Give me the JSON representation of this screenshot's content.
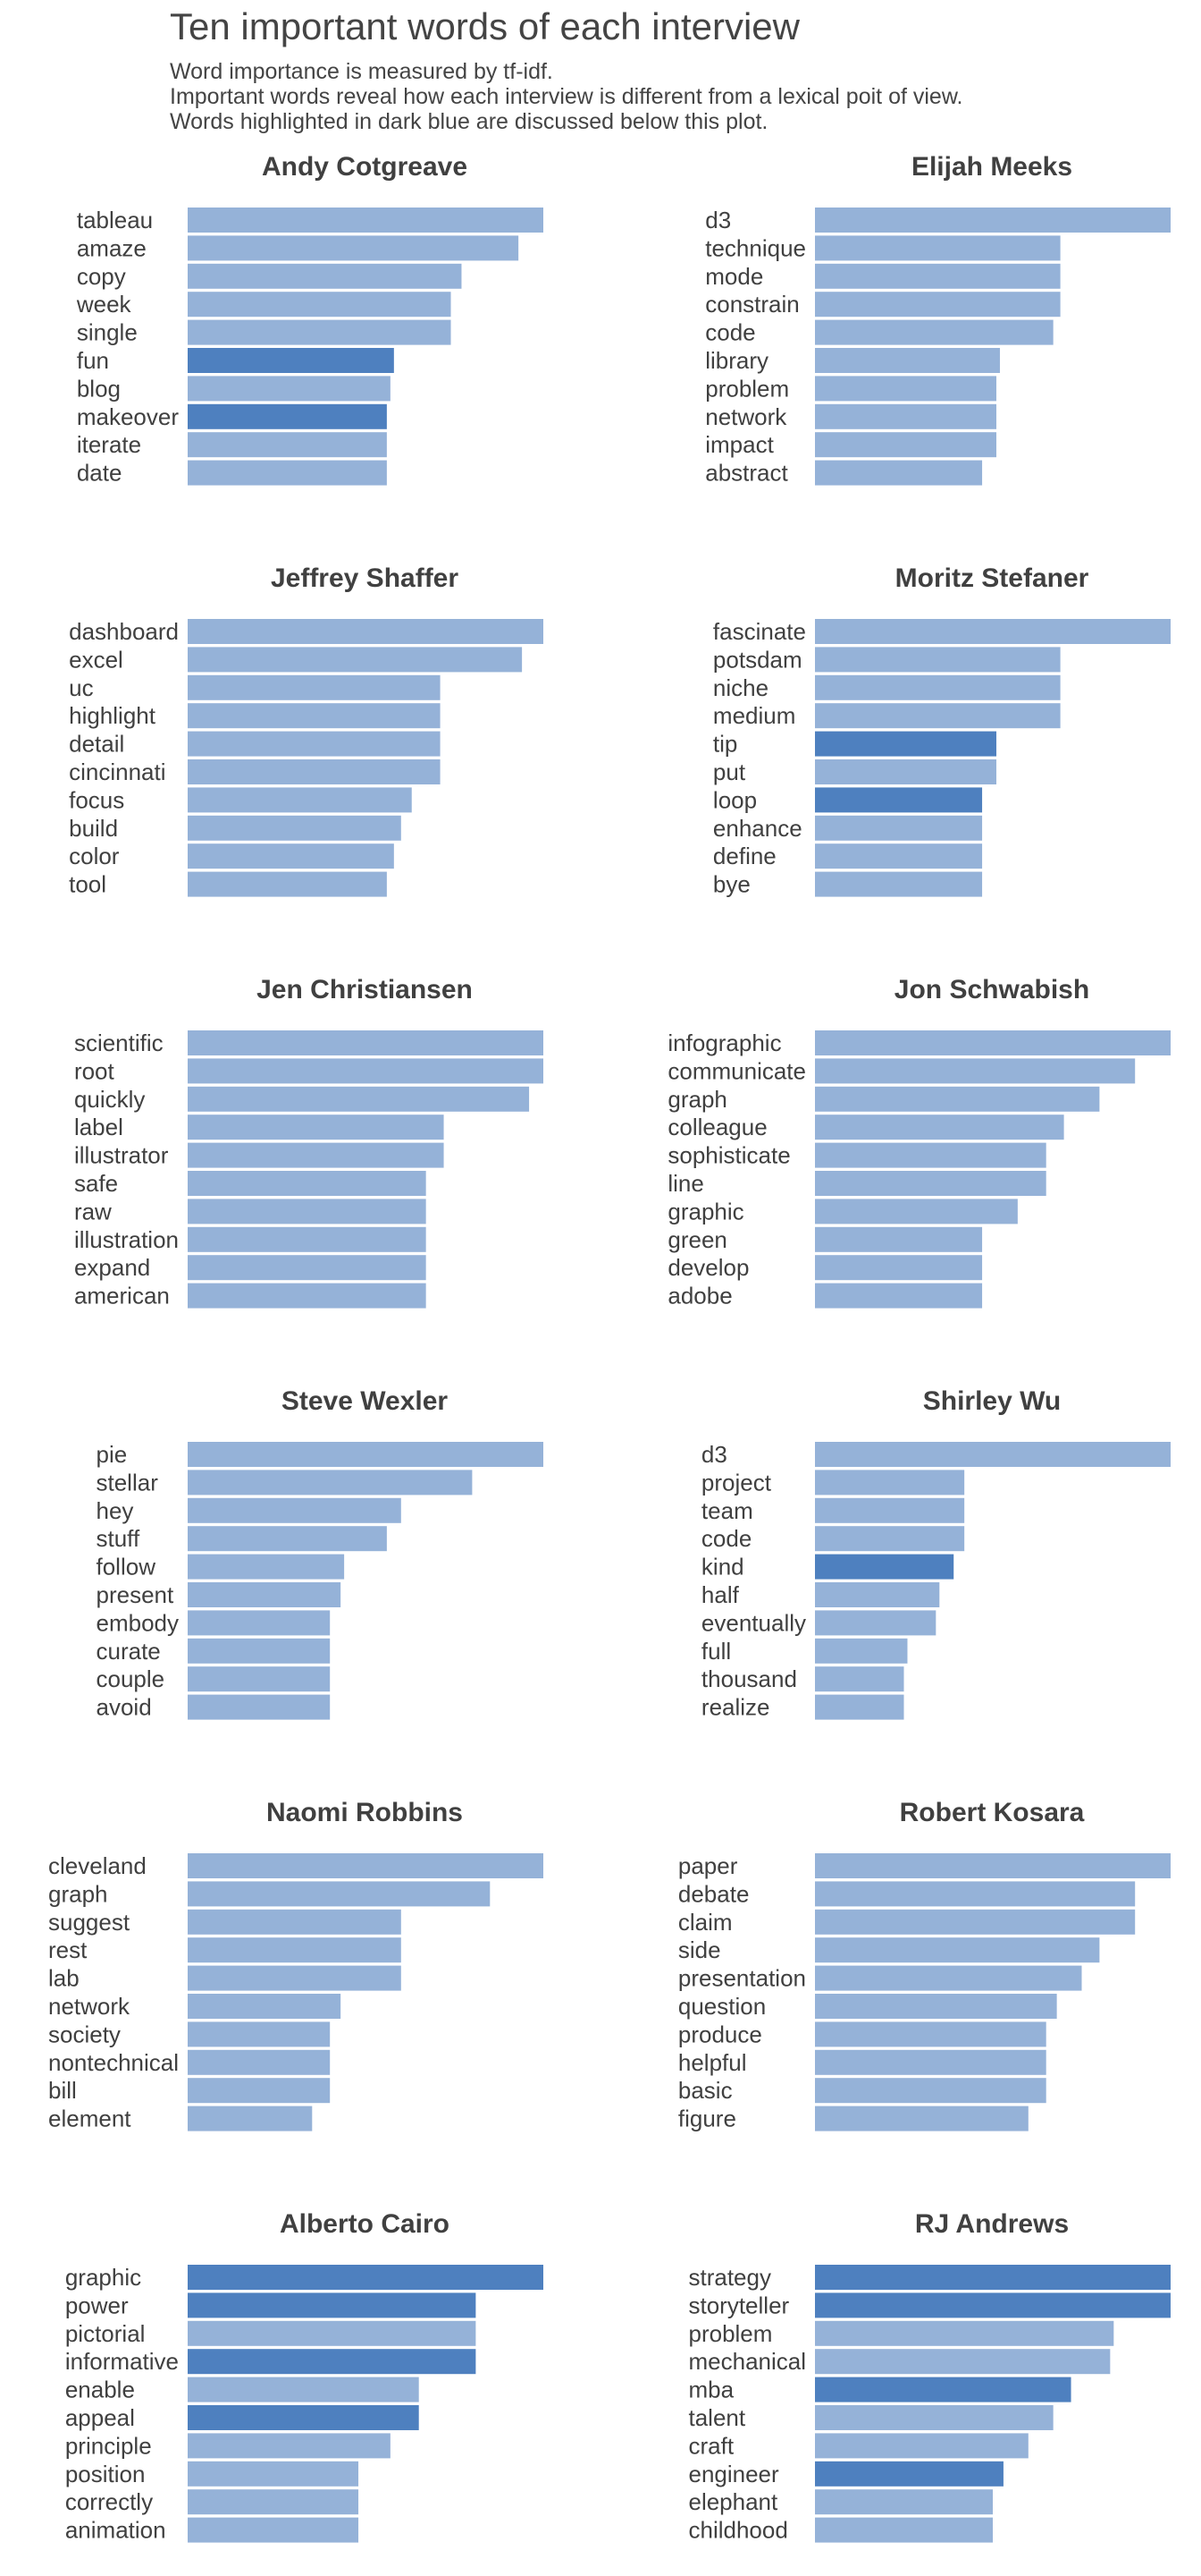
{
  "header": {
    "title": "Ten important words of each interview",
    "subtitle_lines": [
      "Word importance is measured by tf-idf.",
      "Important words reveal how each interview is different from a lexical poit of view.",
      "Words highlighted in dark blue are discussed below this plot."
    ]
  },
  "colors": {
    "normal": "#95b2d8",
    "highlight": "#4e80bf",
    "text": "#404040",
    "panel_title": "#404040"
  },
  "chart_data": {
    "type": "bar",
    "orientation": "horizontal",
    "measure": "tf-idf",
    "grid": false,
    "legend": "none",
    "panels": [
      {
        "name": "Andy Cotgreave",
        "words": [
          "tableau",
          "amaze",
          "copy",
          "week",
          "single",
          "fun",
          "blog",
          "makeover",
          "iterate",
          "date"
        ],
        "values": [
          1.0,
          0.93,
          0.77,
          0.74,
          0.74,
          0.58,
          0.57,
          0.56,
          0.56,
          0.56
        ],
        "highlighted": [
          false,
          false,
          false,
          false,
          false,
          true,
          false,
          true,
          false,
          false
        ]
      },
      {
        "name": "Elijah Meeks",
        "words": [
          "d3",
          "technique",
          "mode",
          "constrain",
          "code",
          "library",
          "problem",
          "network",
          "impact",
          "abstract"
        ],
        "values": [
          1.0,
          0.69,
          0.69,
          0.69,
          0.67,
          0.52,
          0.51,
          0.51,
          0.51,
          0.47
        ],
        "highlighted": [
          false,
          false,
          false,
          false,
          false,
          false,
          false,
          false,
          false,
          false
        ]
      },
      {
        "name": "Jeffrey Shaffer",
        "words": [
          "dashboard",
          "excel",
          "uc",
          "highlight",
          "detail",
          "cincinnati",
          "focus",
          "build",
          "color",
          "tool"
        ],
        "values": [
          1.0,
          0.94,
          0.71,
          0.71,
          0.71,
          0.71,
          0.63,
          0.6,
          0.58,
          0.56
        ],
        "highlighted": [
          false,
          false,
          false,
          false,
          false,
          false,
          false,
          false,
          false,
          false
        ]
      },
      {
        "name": "Moritz Stefaner",
        "words": [
          "fascinate",
          "potsdam",
          "niche",
          "medium",
          "tip",
          "put",
          "loop",
          "enhance",
          "define",
          "bye"
        ],
        "values": [
          1.0,
          0.69,
          0.69,
          0.69,
          0.51,
          0.51,
          0.47,
          0.47,
          0.47,
          0.47
        ],
        "highlighted": [
          false,
          false,
          false,
          false,
          true,
          false,
          true,
          false,
          false,
          false
        ]
      },
      {
        "name": "Jen Christiansen",
        "words": [
          "scientific",
          "root",
          "quickly",
          "label",
          "illustrator",
          "safe",
          "raw",
          "illustration",
          "expand",
          "american"
        ],
        "values": [
          1.0,
          1.0,
          0.96,
          0.72,
          0.72,
          0.67,
          0.67,
          0.67,
          0.67,
          0.67
        ],
        "highlighted": [
          false,
          false,
          false,
          false,
          false,
          false,
          false,
          false,
          false,
          false
        ]
      },
      {
        "name": "Jon Schwabish",
        "words": [
          "infographic",
          "communicate",
          "graph",
          "colleague",
          "sophisticate",
          "line",
          "graphic",
          "green",
          "develop",
          "adobe"
        ],
        "values": [
          1.0,
          0.9,
          0.8,
          0.7,
          0.65,
          0.65,
          0.57,
          0.47,
          0.47,
          0.47
        ],
        "highlighted": [
          false,
          false,
          false,
          false,
          false,
          false,
          false,
          false,
          false,
          false
        ]
      },
      {
        "name": "Steve Wexler",
        "words": [
          "pie",
          "stellar",
          "hey",
          "stuff",
          "follow",
          "present",
          "embody",
          "curate",
          "couple",
          "avoid"
        ],
        "values": [
          1.0,
          0.8,
          0.6,
          0.56,
          0.44,
          0.43,
          0.4,
          0.4,
          0.4,
          0.4
        ],
        "highlighted": [
          false,
          false,
          false,
          false,
          false,
          false,
          false,
          false,
          false,
          false
        ]
      },
      {
        "name": "Shirley Wu",
        "words": [
          "d3",
          "project",
          "team",
          "code",
          "kind",
          "half",
          "eventually",
          "full",
          "thousand",
          "realize"
        ],
        "values": [
          1.0,
          0.42,
          0.42,
          0.42,
          0.39,
          0.35,
          0.34,
          0.26,
          0.25,
          0.25
        ],
        "highlighted": [
          false,
          false,
          false,
          false,
          true,
          false,
          false,
          false,
          false,
          false
        ]
      },
      {
        "name": "Naomi Robbins",
        "words": [
          "cleveland",
          "graph",
          "suggest",
          "rest",
          "lab",
          "network",
          "society",
          "nontechnical",
          "bill",
          "element"
        ],
        "values": [
          1.0,
          0.85,
          0.6,
          0.6,
          0.6,
          0.43,
          0.4,
          0.4,
          0.4,
          0.35
        ],
        "highlighted": [
          false,
          false,
          false,
          false,
          false,
          false,
          false,
          false,
          false,
          false
        ]
      },
      {
        "name": "Robert Kosara",
        "words": [
          "paper",
          "debate",
          "claim",
          "side",
          "presentation",
          "question",
          "produce",
          "helpful",
          "basic",
          "figure"
        ],
        "values": [
          1.0,
          0.9,
          0.9,
          0.8,
          0.75,
          0.68,
          0.65,
          0.65,
          0.65,
          0.6
        ],
        "highlighted": [
          false,
          false,
          false,
          false,
          false,
          false,
          false,
          false,
          false,
          false
        ]
      },
      {
        "name": "Alberto Cairo",
        "words": [
          "graphic",
          "power",
          "pictorial",
          "informative",
          "enable",
          "appeal",
          "principle",
          "position",
          "correctly",
          "animation"
        ],
        "values": [
          1.0,
          0.81,
          0.81,
          0.81,
          0.65,
          0.65,
          0.57,
          0.48,
          0.48,
          0.48
        ],
        "highlighted": [
          true,
          true,
          false,
          true,
          false,
          true,
          false,
          false,
          false,
          false
        ]
      },
      {
        "name": "RJ Andrews",
        "words": [
          "strategy",
          "storyteller",
          "problem",
          "mechanical",
          "mba",
          "talent",
          "craft",
          "engineer",
          "elephant",
          "childhood"
        ],
        "values": [
          1.0,
          1.0,
          0.84,
          0.83,
          0.72,
          0.67,
          0.6,
          0.53,
          0.5,
          0.5
        ],
        "highlighted": [
          true,
          true,
          false,
          false,
          true,
          false,
          false,
          true,
          false,
          false
        ]
      }
    ]
  }
}
